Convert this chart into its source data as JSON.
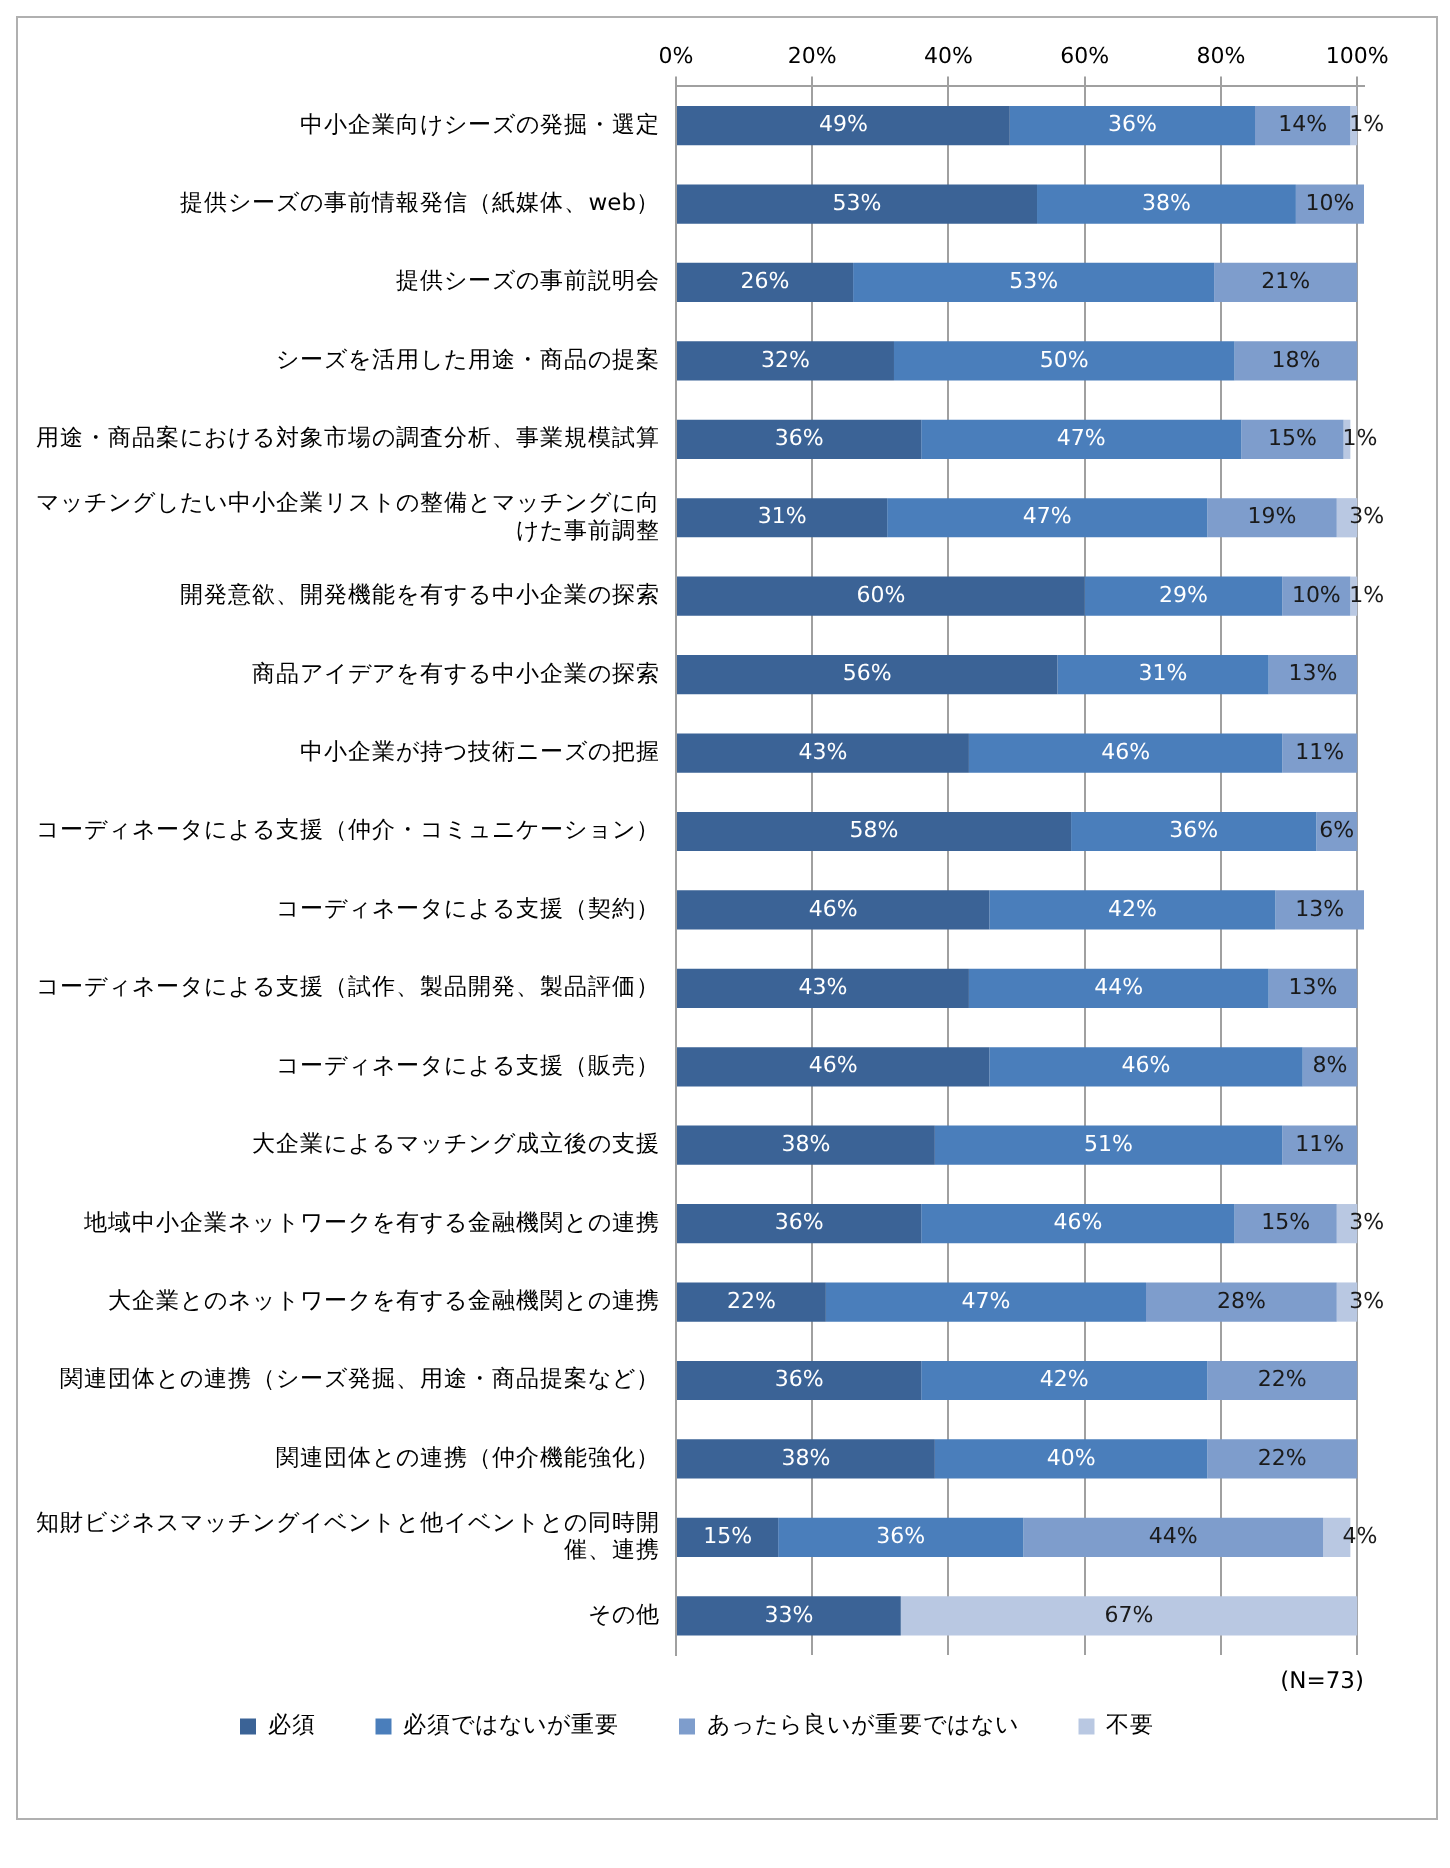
{
  "chart_data": {
    "type": "bar",
    "orientation": "horizontal",
    "stacked": true,
    "categories": [
      "中小企業向けシーズの発掘・選定",
      "提供シーズの事前情報発信（紙媒体、web）",
      "提供シーズの事前説明会",
      "シーズを活用した用途・商品の提案",
      "用途・商品案における対象市場の調査分析、事業規模試算",
      "マッチングしたい中小企業リストの整備とマッチングに向けた事前調整",
      "開発意欲、開発機能を有する中小企業の探索",
      "商品アイデアを有する中小企業の探索",
      "中小企業が持つ技術ニーズの把握",
      "コーディネータによる支援（仲介・コミュニケーション）",
      "コーディネータによる支援（契約）",
      "コーディネータによる支援（試作、製品開発、製品評価）",
      "コーディネータによる支援（販売）",
      "大企業によるマッチング成立後の支援",
      "地域中小企業ネットワークを有する金融機関との連携",
      "大企業とのネットワークを有する金融機関との連携",
      "関連団体との連携（シーズ発掘、用途・商品提案など）",
      "関連団体との連携（仲介機能強化）",
      "知財ビジネスマッチングイベントと他イベントとの同時開催、連携",
      "その他"
    ],
    "series": [
      {
        "name": "必須",
        "color": "#3b6396",
        "values": [
          49,
          53,
          26,
          32,
          36,
          31,
          60,
          56,
          43,
          58,
          46,
          43,
          46,
          38,
          36,
          22,
          36,
          38,
          15,
          33
        ],
        "value_labels": [
          "49%",
          "53%",
          "26%",
          "32%",
          "36%",
          "31%",
          "60%",
          "56%",
          "43%",
          "58%",
          "46%",
          "43%",
          "46%",
          "38%",
          "36%",
          "22%",
          "36%",
          "38%",
          "15%",
          "33%"
        ]
      },
      {
        "name": "必須ではないが重要",
        "color": "#4a7ebb",
        "values": [
          36,
          38,
          53,
          50,
          47,
          47,
          29,
          31,
          46,
          36,
          42,
          44,
          46,
          51,
          46,
          47,
          42,
          40,
          36,
          null
        ],
        "value_labels": [
          "36%",
          "38%",
          "53%",
          "50%",
          "47%",
          "47%",
          "29%",
          "31%",
          "46%",
          "36%",
          "42%",
          "44%",
          "46%",
          "51%",
          "46%",
          "47%",
          "42%",
          "40%",
          "36%",
          null
        ]
      },
      {
        "name": "あったら良いが重要ではない",
        "color": "#7e9dcc",
        "values": [
          14,
          10,
          21,
          18,
          15,
          19,
          10,
          13,
          11,
          6,
          13,
          13,
          8,
          11,
          15,
          28,
          22,
          22,
          44,
          null
        ],
        "value_labels": [
          "14%",
          "10%",
          "21%",
          "18%",
          "15%",
          "19%",
          "10%",
          "13%",
          "11%",
          "6%",
          "13%",
          "13%",
          "8%",
          "11%",
          "15%",
          "28%",
          "22%",
          "22%",
          "44%",
          null
        ]
      },
      {
        "name": "不要",
        "color": "#b9c8e2",
        "values": [
          1,
          null,
          null,
          null,
          1,
          3,
          1,
          null,
          null,
          null,
          null,
          null,
          null,
          null,
          3,
          3,
          null,
          null,
          4,
          67
        ],
        "value_labels": [
          "1%",
          null,
          null,
          null,
          "1%",
          "3%",
          "1%",
          null,
          null,
          null,
          null,
          null,
          null,
          null,
          "3%",
          "3%",
          null,
          null,
          "4%",
          "67%"
        ]
      }
    ],
    "xlim": [
      0,
      101
    ],
    "xticks": [
      {
        "value": 0,
        "label": "0%"
      },
      {
        "value": 20,
        "label": "20%"
      },
      {
        "value": 40,
        "label": "40%"
      },
      {
        "value": 60,
        "label": "60%"
      },
      {
        "value": 80,
        "label": "80%"
      },
      {
        "value": 100,
        "label": "100%"
      }
    ],
    "grid": "x",
    "legend": "bottom",
    "annotations": [
      "(N=73)"
    ]
  }
}
